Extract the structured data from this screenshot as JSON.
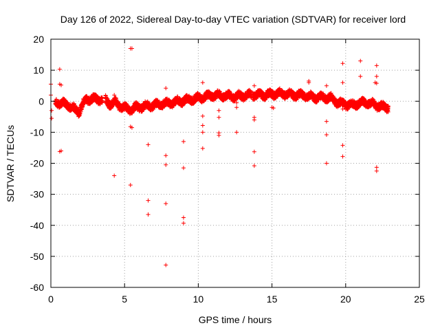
{
  "chart_data": {
    "type": "scatter",
    "title": "Day 126 of 2022, Sidereal Day-to-day VTEC variation (SDTVAR) for receiver lord",
    "xlabel": "GPS time / hours",
    "ylabel": "SDTVAR / TECUs",
    "xlim": [
      0,
      25
    ],
    "ylim": [
      -60,
      20
    ],
    "xticks": [
      0,
      5,
      10,
      15,
      20,
      25
    ],
    "yticks": [
      -60,
      -50,
      -40,
      -30,
      -20,
      -10,
      0,
      10,
      20
    ],
    "grid": true,
    "marker": "plus",
    "color": "#ff0000",
    "trend": [
      [
        0.3,
        -0.2
      ],
      [
        0.7,
        -0.6
      ],
      [
        1.2,
        -1.2
      ],
      [
        1.6,
        -2.5
      ],
      [
        1.9,
        -3.5
      ],
      [
        2.1,
        -1.5
      ],
      [
        2.4,
        0.5
      ],
      [
        2.8,
        0.8
      ],
      [
        3.2,
        0.5
      ],
      [
        3.6,
        0.7
      ],
      [
        4.0,
        -0.8
      ],
      [
        4.4,
        -0.5
      ],
      [
        4.7,
        -1.5
      ],
      [
        5.0,
        -2.2
      ],
      [
        5.4,
        -2.6
      ],
      [
        5.8,
        -2.0
      ],
      [
        6.2,
        -1.8
      ],
      [
        6.6,
        -1.5
      ],
      [
        7.0,
        -1.3
      ],
      [
        7.5,
        -0.8
      ],
      [
        8.0,
        -0.6
      ],
      [
        8.5,
        -0.2
      ],
      [
        9.0,
        0.2
      ],
      [
        9.5,
        0.6
      ],
      [
        10.0,
        1.0
      ],
      [
        10.5,
        1.5
      ],
      [
        11.0,
        1.8
      ],
      [
        11.5,
        2.0
      ],
      [
        12.0,
        1.7
      ],
      [
        12.5,
        1.5
      ],
      [
        13.0,
        1.8
      ],
      [
        13.5,
        2.0
      ],
      [
        14.0,
        2.1
      ],
      [
        14.5,
        2.0
      ],
      [
        15.0,
        2.3
      ],
      [
        15.5,
        2.5
      ],
      [
        16.0,
        2.3
      ],
      [
        16.5,
        2.0
      ],
      [
        17.0,
        2.0
      ],
      [
        17.5,
        1.5
      ],
      [
        18.0,
        1.2
      ],
      [
        18.5,
        1.3
      ],
      [
        19.0,
        1.0
      ],
      [
        19.5,
        -0.5
      ],
      [
        20.0,
        -1.0
      ],
      [
        20.5,
        -1.2
      ],
      [
        21.0,
        -0.5
      ],
      [
        21.5,
        -0.5
      ],
      [
        22.0,
        -1.2
      ],
      [
        22.5,
        -1.8
      ],
      [
        22.9,
        -2.0
      ]
    ],
    "outliers": [
      [
        0.0,
        5.5
      ],
      [
        0.0,
        2.0
      ],
      [
        0.05,
        -3.0
      ],
      [
        0.05,
        -5.5
      ],
      [
        0.6,
        10.3
      ],
      [
        0.6,
        5.5
      ],
      [
        0.7,
        5.2
      ],
      [
        0.6,
        -16.2
      ],
      [
        0.7,
        -16.0
      ],
      [
        4.3,
        2.0
      ],
      [
        4.3,
        -24.0
      ],
      [
        5.4,
        17.0
      ],
      [
        5.5,
        17.0
      ],
      [
        5.4,
        -8.2
      ],
      [
        5.5,
        -8.5
      ],
      [
        5.4,
        -27.0
      ],
      [
        6.6,
        -14.0
      ],
      [
        6.6,
        -32.0
      ],
      [
        6.6,
        -36.5
      ],
      [
        7.8,
        4.2
      ],
      [
        7.8,
        -17.5
      ],
      [
        7.8,
        -20.5
      ],
      [
        7.8,
        -33.0
      ],
      [
        7.8,
        -52.8
      ],
      [
        9.0,
        -13.0
      ],
      [
        9.0,
        -21.5
      ],
      [
        9.0,
        -37.5
      ],
      [
        9.0,
        -39.3
      ],
      [
        10.3,
        6.0
      ],
      [
        10.3,
        -4.8
      ],
      [
        10.3,
        -7.8
      ],
      [
        10.3,
        -10.0
      ],
      [
        10.3,
        -15.2
      ],
      [
        11.4,
        -3.0
      ],
      [
        11.4,
        -5.2
      ],
      [
        11.4,
        -10.2
      ],
      [
        11.4,
        -11.0
      ],
      [
        12.6,
        -0.5
      ],
      [
        12.6,
        -2.0
      ],
      [
        12.6,
        -10.0
      ],
      [
        13.8,
        5.0
      ],
      [
        13.8,
        -5.2
      ],
      [
        13.8,
        -6.0
      ],
      [
        13.8,
        -16.3
      ],
      [
        13.8,
        -20.8
      ],
      [
        15.0,
        -2.0
      ],
      [
        15.1,
        -2.2
      ],
      [
        17.5,
        6.5
      ],
      [
        17.5,
        6.0
      ],
      [
        18.7,
        5.0
      ],
      [
        18.7,
        -6.5
      ],
      [
        18.7,
        -10.8
      ],
      [
        18.7,
        -20.0
      ],
      [
        19.8,
        12.2
      ],
      [
        19.8,
        6.0
      ],
      [
        19.8,
        -2.5
      ],
      [
        19.8,
        -14.2
      ],
      [
        19.8,
        -17.8
      ],
      [
        21.0,
        13.0
      ],
      [
        21.0,
        8.0
      ],
      [
        22.1,
        11.5
      ],
      [
        22.1,
        8.0
      ],
      [
        22.0,
        6.0
      ],
      [
        22.1,
        5.8
      ],
      [
        22.1,
        -21.3
      ],
      [
        22.1,
        -22.5
      ]
    ]
  }
}
